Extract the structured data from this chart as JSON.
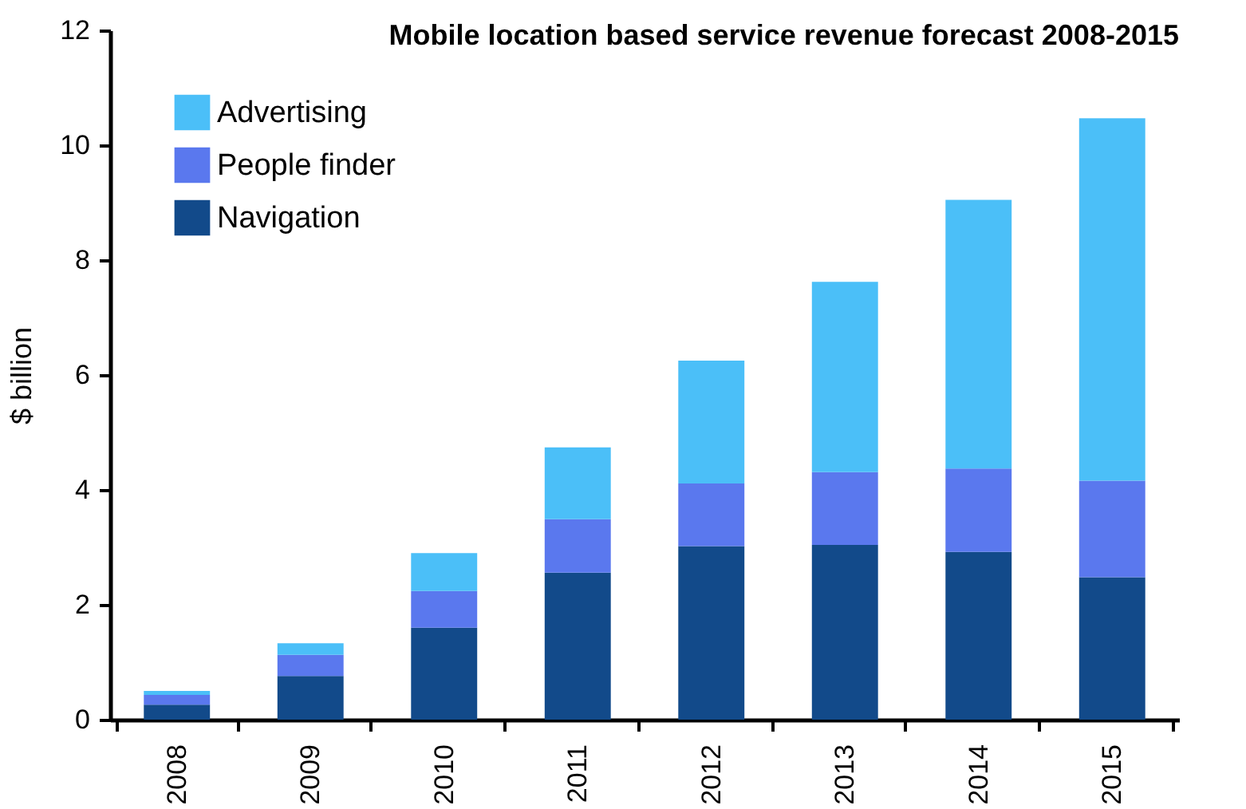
{
  "chart_data": {
    "type": "bar",
    "title": "Mobile location based service revenue forecast 2008-2015",
    "ylabel": "$ billion",
    "categories": [
      "2008",
      "2009",
      "2010",
      "2011",
      "2012",
      "2013",
      "2014",
      "2015"
    ],
    "stacked": true,
    "series": [
      {
        "name": "Navigation",
        "color": "#124a8a",
        "values": [
          0.26,
          0.76,
          1.6,
          2.56,
          3.02,
          3.04,
          2.92,
          2.48
        ]
      },
      {
        "name": "People finder",
        "color": "#5a78ee",
        "values": [
          0.17,
          0.37,
          0.64,
          0.93,
          1.09,
          1.27,
          1.45,
          1.68
        ]
      },
      {
        "name": "Advertising",
        "color": "#4bbff8",
        "values": [
          0.07,
          0.2,
          0.66,
          1.25,
          2.14,
          3.31,
          4.68,
          6.31
        ]
      }
    ],
    "ylim": [
      0,
      12
    ],
    "yticks": [
      0,
      2,
      4,
      6,
      8,
      10,
      12
    ],
    "grid": false,
    "legend": "top left"
  }
}
